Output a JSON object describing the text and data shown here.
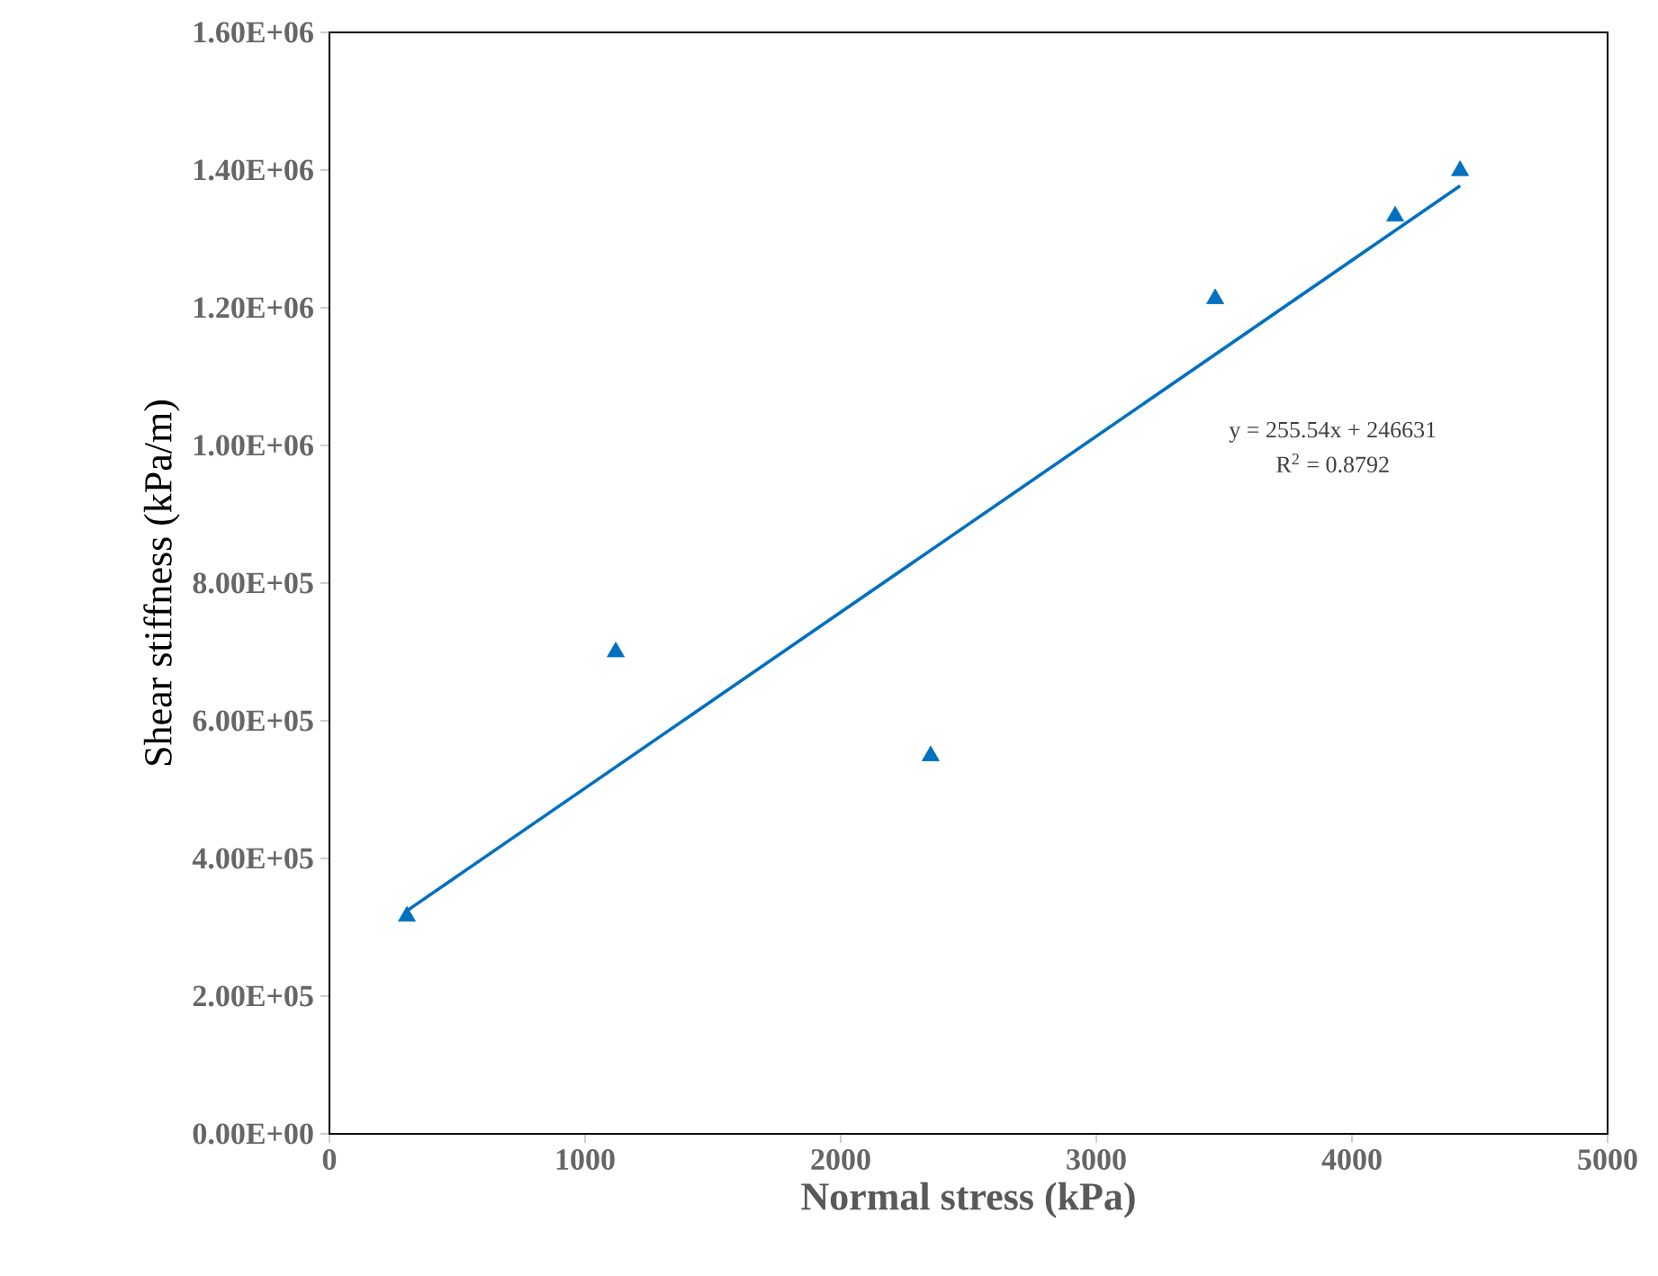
{
  "chart_data": {
    "type": "scatter",
    "xlabel": "Normal stress (kPa)",
    "ylabel": "Shear stiffness (kPa/m)",
    "xlim": [
      0,
      5000
    ],
    "xticks": [
      0,
      1000,
      2000,
      3000,
      4000,
      5000
    ],
    "ylim": [
      0,
      1600000
    ],
    "yticks": [
      {
        "value": 0,
        "label": "0.00E+00"
      },
      {
        "value": 200000,
        "label": "2.00E+05"
      },
      {
        "value": 400000,
        "label": "4.00E+05"
      },
      {
        "value": 600000,
        "label": "6.00E+05"
      },
      {
        "value": 800000,
        "label": "8.00E+05"
      },
      {
        "value": 1000000,
        "label": "1.00E+06"
      },
      {
        "value": 1200000,
        "label": "1.20E+06"
      },
      {
        "value": 1400000,
        "label": "1.40E+06"
      },
      {
        "value": 1600000,
        "label": "1.60E+06"
      }
    ],
    "series": [
      {
        "marker": "triangle",
        "color": "#0070c0",
        "x": [
          303,
          1120,
          2352,
          3465,
          4169,
          4423
        ],
        "values": [
          316000,
          700000,
          549000,
          1213000,
          1333000,
          1399000
        ]
      },
      {
        "type": "line",
        "marker": "none",
        "line_style": "solid",
        "color": "#0070c0",
        "x": [
          303,
          4423
        ],
        "values": [
          324000,
          1377000
        ]
      }
    ],
    "annotations": [
      "y = 255.54x + 246631",
      "R$^{2}$ = 0.8792"
    ]
  }
}
